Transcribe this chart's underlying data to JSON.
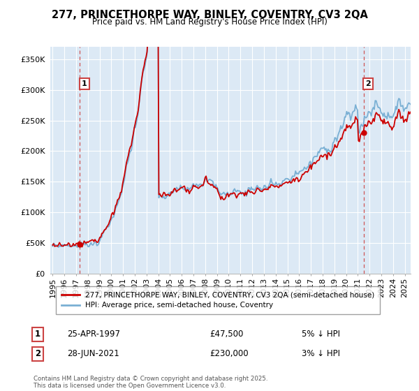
{
  "title": "277, PRINCETHORPE WAY, BINLEY, COVENTRY, CV3 2QA",
  "subtitle": "Price paid vs. HM Land Registry's House Price Index (HPI)",
  "yticks": [
    0,
    50000,
    100000,
    150000,
    200000,
    250000,
    300000,
    350000
  ],
  "ytick_labels": [
    "£0",
    "£50K",
    "£100K",
    "£150K",
    "£200K",
    "£250K",
    "£300K",
    "£350K"
  ],
  "xlim_start": 1994.8,
  "xlim_end": 2025.5,
  "ylim_min": 0,
  "ylim_max": 370000,
  "sale1_x": 1997.32,
  "sale1_y": 47500,
  "sale1_label": "1",
  "sale1_date": "25-APR-1997",
  "sale1_price": "£47,500",
  "sale1_note": "5% ↓ HPI",
  "sale2_x": 2021.49,
  "sale2_y": 230000,
  "sale2_label": "2",
  "sale2_date": "28-JUN-2021",
  "sale2_price": "£230,000",
  "sale2_note": "3% ↓ HPI",
  "line_color_price": "#cc0000",
  "line_color_hpi": "#7ab0d4",
  "vline_color": "#cc4444",
  "plot_bg_color": "#dce9f5",
  "background_color": "#ffffff",
  "grid_color": "#ffffff",
  "legend_border_color": "#888888",
  "title_fontsize": 10.5,
  "subtitle_fontsize": 8.5,
  "tick_fontsize": 8,
  "footer_text": "Contains HM Land Registry data © Crown copyright and database right 2025.\nThis data is licensed under the Open Government Licence v3.0.",
  "legend_label_price": "277, PRINCETHORPE WAY, BINLEY, COVENTRY, CV3 2QA (semi-detached house)",
  "legend_label_hpi": "HPI: Average price, semi-detached house, Coventry"
}
